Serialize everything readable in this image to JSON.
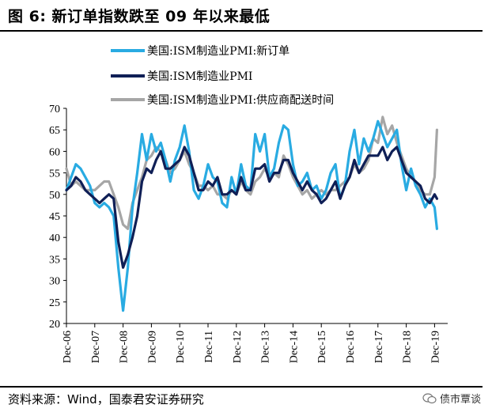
{
  "figure": {
    "title": "图 6:  新订单指数跌至 09 年以来最低",
    "source": "资料来源：Wind，国泰君安证券研究",
    "watermark": "债市覃谈"
  },
  "chart_data": {
    "type": "line",
    "ylim": [
      20,
      70
    ],
    "yticks": [
      20,
      25,
      30,
      35,
      40,
      45,
      50,
      55,
      60,
      65,
      70
    ],
    "x_tick_labels": [
      "Dec-06",
      "Dec-07",
      "Dec-08",
      "Dec-09",
      "Dec-10",
      "Dec-11",
      "Dec-12",
      "Dec-13",
      "Dec-14",
      "Dec-15",
      "Dec-16",
      "Dec-17",
      "Dec-18",
      "Dec-19"
    ],
    "x_start": "2006-12",
    "grid": false,
    "legend_position": "top",
    "series": [
      {
        "name": "美国:ISM制造业PMI:新订单",
        "color": "#29abe2",
        "width": 3.2,
        "points": [
          [
            "2006-12",
            51
          ],
          [
            "2007-02",
            54
          ],
          [
            "2007-04",
            57
          ],
          [
            "2007-06",
            56
          ],
          [
            "2007-08",
            54
          ],
          [
            "2007-10",
            52
          ],
          [
            "2007-12",
            48
          ],
          [
            "2008-02",
            47
          ],
          [
            "2008-04",
            48
          ],
          [
            "2008-06",
            47
          ],
          [
            "2008-08",
            45
          ],
          [
            "2008-10",
            33
          ],
          [
            "2008-12",
            23
          ],
          [
            "2009-02",
            33
          ],
          [
            "2009-04",
            47
          ],
          [
            "2009-06",
            55
          ],
          [
            "2009-08",
            64
          ],
          [
            "2009-10",
            58
          ],
          [
            "2009-12",
            64
          ],
          [
            "2010-02",
            60
          ],
          [
            "2010-04",
            62
          ],
          [
            "2010-06",
            58
          ],
          [
            "2010-08",
            53
          ],
          [
            "2010-10",
            58
          ],
          [
            "2010-12",
            61
          ],
          [
            "2011-02",
            66
          ],
          [
            "2011-04",
            60
          ],
          [
            "2011-06",
            51
          ],
          [
            "2011-08",
            49
          ],
          [
            "2011-10",
            52
          ],
          [
            "2011-12",
            57
          ],
          [
            "2012-02",
            54
          ],
          [
            "2012-04",
            53
          ],
          [
            "2012-06",
            48
          ],
          [
            "2012-08",
            47
          ],
          [
            "2012-10",
            54
          ],
          [
            "2012-12",
            50
          ],
          [
            "2013-02",
            57
          ],
          [
            "2013-04",
            52
          ],
          [
            "2013-06",
            51
          ],
          [
            "2013-08",
            64
          ],
          [
            "2013-10",
            60
          ],
          [
            "2013-12",
            64
          ],
          [
            "2014-02",
            54
          ],
          [
            "2014-04",
            56
          ],
          [
            "2014-06",
            62
          ],
          [
            "2014-08",
            66
          ],
          [
            "2014-10",
            65
          ],
          [
            "2014-12",
            57
          ],
          [
            "2015-02",
            52
          ],
          [
            "2015-04",
            53
          ],
          [
            "2015-06",
            55
          ],
          [
            "2015-08",
            51
          ],
          [
            "2015-10",
            52
          ],
          [
            "2015-12",
            49
          ],
          [
            "2016-02",
            51
          ],
          [
            "2016-04",
            55
          ],
          [
            "2016-06",
            57
          ],
          [
            "2016-08",
            49
          ],
          [
            "2016-10",
            52
          ],
          [
            "2016-12",
            60
          ],
          [
            "2017-02",
            65
          ],
          [
            "2017-04",
            57
          ],
          [
            "2017-06",
            63
          ],
          [
            "2017-08",
            60
          ],
          [
            "2017-10",
            63
          ],
          [
            "2017-12",
            67
          ],
          [
            "2018-02",
            64
          ],
          [
            "2018-04",
            61
          ],
          [
            "2018-06",
            63
          ],
          [
            "2018-08",
            65
          ],
          [
            "2018-10",
            57
          ],
          [
            "2018-12",
            51
          ],
          [
            "2019-02",
            56
          ],
          [
            "2019-04",
            52
          ],
          [
            "2019-06",
            50
          ],
          [
            "2019-08",
            47
          ],
          [
            "2019-10",
            49
          ],
          [
            "2019-12",
            47
          ],
          [
            "2020-01",
            42
          ]
        ]
      },
      {
        "name": "美国:ISM制造业PMI",
        "color": "#0f1f56",
        "width": 3.2,
        "points": [
          [
            "2006-12",
            51
          ],
          [
            "2007-02",
            52
          ],
          [
            "2007-04",
            54
          ],
          [
            "2007-06",
            53
          ],
          [
            "2007-08",
            51
          ],
          [
            "2007-10",
            50
          ],
          [
            "2007-12",
            49
          ],
          [
            "2008-02",
            48
          ],
          [
            "2008-04",
            49
          ],
          [
            "2008-06",
            50
          ],
          [
            "2008-08",
            49
          ],
          [
            "2008-10",
            39
          ],
          [
            "2008-12",
            33
          ],
          [
            "2009-02",
            36
          ],
          [
            "2009-04",
            40
          ],
          [
            "2009-06",
            45
          ],
          [
            "2009-08",
            53
          ],
          [
            "2009-10",
            56
          ],
          [
            "2009-12",
            55
          ],
          [
            "2010-02",
            58
          ],
          [
            "2010-04",
            60
          ],
          [
            "2010-06",
            56
          ],
          [
            "2010-08",
            56
          ],
          [
            "2010-10",
            57
          ],
          [
            "2010-12",
            58
          ],
          [
            "2011-02",
            61
          ],
          [
            "2011-04",
            59
          ],
          [
            "2011-06",
            55
          ],
          [
            "2011-08",
            51
          ],
          [
            "2011-10",
            51
          ],
          [
            "2011-12",
            53
          ],
          [
            "2012-02",
            52
          ],
          [
            "2012-04",
            54
          ],
          [
            "2012-06",
            50
          ],
          [
            "2012-08",
            50
          ],
          [
            "2012-10",
            51
          ],
          [
            "2012-12",
            50
          ],
          [
            "2013-02",
            54
          ],
          [
            "2013-04",
            51
          ],
          [
            "2013-06",
            51
          ],
          [
            "2013-08",
            56
          ],
          [
            "2013-10",
            56
          ],
          [
            "2013-12",
            57
          ],
          [
            "2014-02",
            53
          ],
          [
            "2014-04",
            55
          ],
          [
            "2014-06",
            55
          ],
          [
            "2014-08",
            58
          ],
          [
            "2014-10",
            58
          ],
          [
            "2014-12",
            55
          ],
          [
            "2015-02",
            53
          ],
          [
            "2015-04",
            51
          ],
          [
            "2015-06",
            53
          ],
          [
            "2015-08",
            51
          ],
          [
            "2015-10",
            50
          ],
          [
            "2015-12",
            48
          ],
          [
            "2016-02",
            49
          ],
          [
            "2016-04",
            51
          ],
          [
            "2016-06",
            53
          ],
          [
            "2016-08",
            49
          ],
          [
            "2016-10",
            52
          ],
          [
            "2016-12",
            54
          ],
          [
            "2017-02",
            58
          ],
          [
            "2017-04",
            55
          ],
          [
            "2017-06",
            57
          ],
          [
            "2017-08",
            59
          ],
          [
            "2017-10",
            59
          ],
          [
            "2017-12",
            59
          ],
          [
            "2018-02",
            61
          ],
          [
            "2018-04",
            58
          ],
          [
            "2018-06",
            60
          ],
          [
            "2018-08",
            61
          ],
          [
            "2018-10",
            58
          ],
          [
            "2018-12",
            55
          ],
          [
            "2019-02",
            54
          ],
          [
            "2019-04",
            53
          ],
          [
            "2019-06",
            52
          ],
          [
            "2019-08",
            49
          ],
          [
            "2019-10",
            48
          ],
          [
            "2019-12",
            50
          ],
          [
            "2020-01",
            49
          ]
        ]
      },
      {
        "name": "美国:ISM制造业PMI:供应商配送时间",
        "color": "#a6a6a6",
        "width": 3.2,
        "points": [
          [
            "2006-12",
            56
          ],
          [
            "2007-02",
            52
          ],
          [
            "2007-04",
            53
          ],
          [
            "2007-06",
            52
          ],
          [
            "2007-08",
            51
          ],
          [
            "2007-10",
            51
          ],
          [
            "2007-12",
            51
          ],
          [
            "2008-02",
            52
          ],
          [
            "2008-04",
            53
          ],
          [
            "2008-06",
            53
          ],
          [
            "2008-08",
            50
          ],
          [
            "2008-10",
            47
          ],
          [
            "2008-12",
            43
          ],
          [
            "2009-02",
            42
          ],
          [
            "2009-04",
            48
          ],
          [
            "2009-06",
            51
          ],
          [
            "2009-08",
            54
          ],
          [
            "2009-10",
            58
          ],
          [
            "2009-12",
            59
          ],
          [
            "2010-02",
            61
          ],
          [
            "2010-04",
            60
          ],
          [
            "2010-06",
            58
          ],
          [
            "2010-08",
            55
          ],
          [
            "2010-10",
            56
          ],
          [
            "2010-12",
            58
          ],
          [
            "2011-02",
            60
          ],
          [
            "2011-04",
            57
          ],
          [
            "2011-06",
            55
          ],
          [
            "2011-08",
            52
          ],
          [
            "2011-10",
            52
          ],
          [
            "2011-12",
            51
          ],
          [
            "2012-02",
            52
          ],
          [
            "2012-04",
            50
          ],
          [
            "2012-06",
            50
          ],
          [
            "2012-08",
            49
          ],
          [
            "2012-10",
            51
          ],
          [
            "2012-12",
            50
          ],
          [
            "2013-02",
            53
          ],
          [
            "2013-04",
            51
          ],
          [
            "2013-06",
            50
          ],
          [
            "2013-08",
            53
          ],
          [
            "2013-10",
            54
          ],
          [
            "2013-12",
            56
          ],
          [
            "2014-02",
            54
          ],
          [
            "2014-04",
            55
          ],
          [
            "2014-06",
            54
          ],
          [
            "2014-08",
            59
          ],
          [
            "2014-10",
            57
          ],
          [
            "2014-12",
            54
          ],
          [
            "2015-02",
            52
          ],
          [
            "2015-04",
            50
          ],
          [
            "2015-06",
            51
          ],
          [
            "2015-08",
            49
          ],
          [
            "2015-10",
            50
          ],
          [
            "2015-12",
            51
          ],
          [
            "2016-02",
            50
          ],
          [
            "2016-04",
            51
          ],
          [
            "2016-06",
            51
          ],
          [
            "2016-08",
            52
          ],
          [
            "2016-10",
            53
          ],
          [
            "2016-12",
            54
          ],
          [
            "2017-02",
            57
          ],
          [
            "2017-04",
            55
          ],
          [
            "2017-06",
            56
          ],
          [
            "2017-08",
            58
          ],
          [
            "2017-10",
            63
          ],
          [
            "2017-12",
            62
          ],
          [
            "2018-02",
            68
          ],
          [
            "2018-04",
            64
          ],
          [
            "2018-06",
            66
          ],
          [
            "2018-08",
            62
          ],
          [
            "2018-10",
            59
          ],
          [
            "2018-12",
            56
          ],
          [
            "2019-02",
            54
          ],
          [
            "2019-04",
            53
          ],
          [
            "2019-06",
            51
          ],
          [
            "2019-08",
            50
          ],
          [
            "2019-10",
            50
          ],
          [
            "2019-12",
            54
          ],
          [
            "2020-01",
            65
          ]
        ]
      }
    ]
  }
}
